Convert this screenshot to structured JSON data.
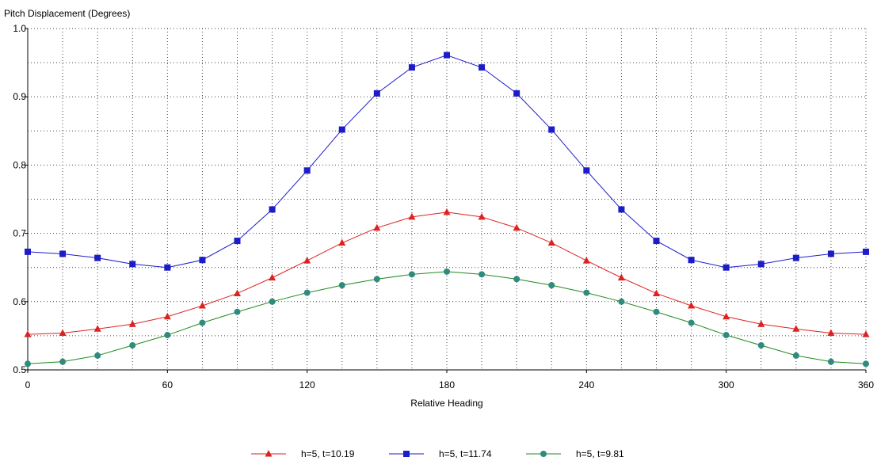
{
  "chart_data": {
    "type": "line",
    "title": "",
    "ylabel": "Pitch Displacement (Degrees)",
    "xlabel": "Relative Heading",
    "xlim": [
      0,
      360
    ],
    "ylim": [
      0.5,
      1.0
    ],
    "x_ticks": [
      0,
      60,
      120,
      180,
      240,
      300,
      360
    ],
    "y_ticks": [
      0.5,
      0.6,
      0.7,
      0.8,
      0.9,
      1.0
    ],
    "y_tick_labels": [
      "0.5",
      "0.6",
      "0.7",
      "0.8",
      "0.9",
      "1.0"
    ],
    "grid": true,
    "legend_position": "bottom-center",
    "x": [
      0,
      15,
      30,
      45,
      60,
      75,
      90,
      105,
      120,
      135,
      150,
      165,
      180,
      195,
      210,
      225,
      240,
      255,
      270,
      285,
      300,
      315,
      330,
      345,
      360
    ],
    "series": [
      {
        "name": "h=5, t=10.19",
        "color": "#dd2222",
        "marker": "triangle",
        "values": [
          0.552,
          0.554,
          0.56,
          0.567,
          0.578,
          0.594,
          0.612,
          0.635,
          0.66,
          0.686,
          0.708,
          0.724,
          0.731,
          0.724,
          0.708,
          0.686,
          0.66,
          0.635,
          0.612,
          0.594,
          0.578,
          0.567,
          0.56,
          0.554,
          0.552
        ]
      },
      {
        "name": "h=5, t=11.74",
        "color": "#1c1cc8",
        "marker": "square",
        "values": [
          0.673,
          0.67,
          0.664,
          0.655,
          0.65,
          0.661,
          0.689,
          0.735,
          0.792,
          0.852,
          0.905,
          0.943,
          0.961,
          0.943,
          0.905,
          0.852,
          0.792,
          0.735,
          0.689,
          0.661,
          0.65,
          0.655,
          0.664,
          0.67,
          0.673
        ]
      },
      {
        "name": "h=5, t=9.81",
        "color": "#2e8b7e",
        "line_color": "#1f8a1f",
        "marker": "circle",
        "values": [
          0.509,
          0.512,
          0.521,
          0.536,
          0.551,
          0.569,
          0.585,
          0.6,
          0.613,
          0.624,
          0.633,
          0.64,
          0.644,
          0.64,
          0.633,
          0.624,
          0.613,
          0.6,
          0.585,
          0.569,
          0.551,
          0.536,
          0.521,
          0.512,
          0.509
        ]
      }
    ]
  }
}
